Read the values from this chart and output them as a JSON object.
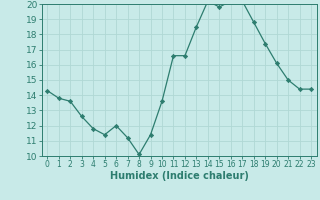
{
  "x": [
    0,
    1,
    2,
    3,
    4,
    5,
    6,
    7,
    8,
    9,
    10,
    11,
    12,
    13,
    14,
    15,
    16,
    17,
    18,
    19,
    20,
    21,
    22,
    23
  ],
  "y": [
    14.3,
    13.8,
    13.6,
    12.6,
    11.8,
    11.4,
    12.0,
    11.2,
    10.1,
    11.4,
    13.6,
    16.6,
    16.6,
    18.5,
    20.2,
    19.8,
    20.2,
    20.2,
    18.8,
    17.4,
    16.1,
    15.0,
    14.4,
    14.4
  ],
  "line_color": "#2d7d6f",
  "marker_color": "#2d7d6f",
  "bg_color": "#c8eae8",
  "grid_color": "#b0d8d4",
  "xlabel": "Humidex (Indice chaleur)",
  "ylim": [
    10,
    20
  ],
  "xlim": [
    -0.5,
    23.5
  ],
  "yticks": [
    10,
    11,
    12,
    13,
    14,
    15,
    16,
    17,
    18,
    19,
    20
  ],
  "xticks": [
    0,
    1,
    2,
    3,
    4,
    5,
    6,
    7,
    8,
    9,
    10,
    11,
    12,
    13,
    14,
    15,
    16,
    17,
    18,
    19,
    20,
    21,
    22,
    23
  ],
  "tick_color": "#2d7d6f",
  "axis_color": "#2d7d6f",
  "xlabel_fontsize": 7.0,
  "ytick_fontsize": 6.5,
  "xtick_fontsize": 5.5
}
